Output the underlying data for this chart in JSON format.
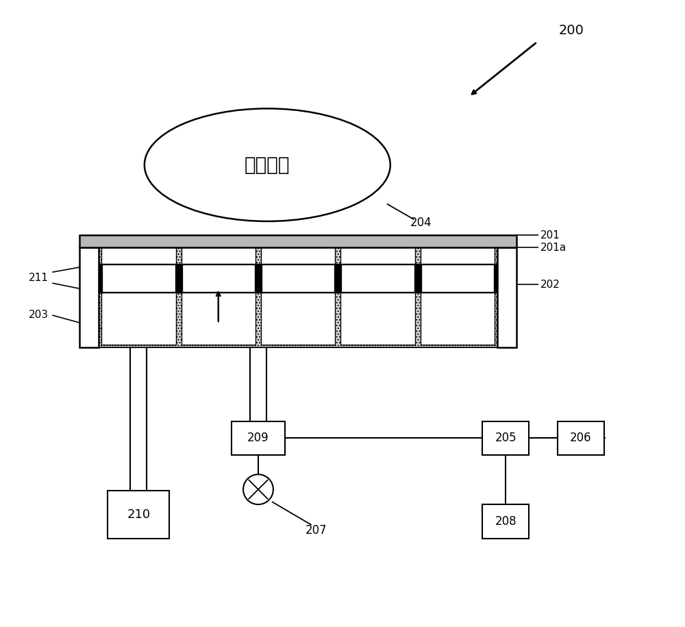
{
  "bg_color": "#ffffff",
  "label_200": "200",
  "label_201": "201",
  "label_201a": "201a",
  "label_202": "202",
  "label_203": "203",
  "label_204": "204",
  "label_205": "205",
  "label_206": "206",
  "label_207": "207",
  "label_208": "208",
  "label_209": "209",
  "label_210": "210",
  "label_211": "211",
  "plasma_text": "等离子体",
  "line_color": "#000000",
  "fill_black": "#000000",
  "fill_white": "#ffffff",
  "fill_gray": "#cccccc",
  "fill_dotted_bg": "#e0e0e0"
}
